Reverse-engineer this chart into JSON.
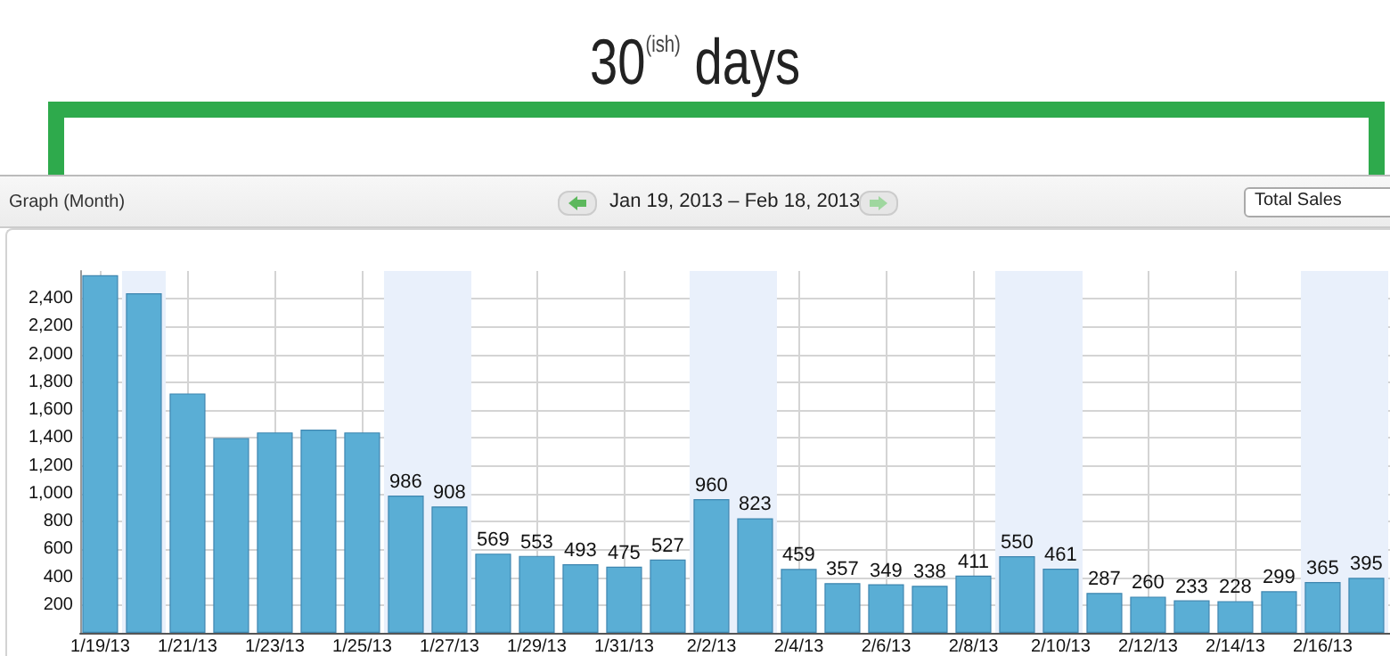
{
  "chart_data": {
    "type": "bar",
    "title": "30$^{(ish)}$ days",
    "annotations": [
      "Graph (Month)",
      "Jan 19, 2013 – Feb 18, 2013",
      "Total Sales"
    ],
    "x": [
      "2013-01-19",
      "2013-01-20",
      "2013-01-21",
      "2013-01-22",
      "2013-01-23",
      "2013-01-24",
      "2013-01-25",
      "2013-01-26",
      "2013-01-27",
      "2013-01-28",
      "2013-01-29",
      "2013-01-30",
      "2013-01-31",
      "2013-02-01",
      "2013-02-02",
      "2013-02-03",
      "2013-02-04",
      "2013-02-05",
      "2013-02-06",
      "2013-02-07",
      "2013-02-08",
      "2013-02-09",
      "2013-02-10",
      "2013-02-11",
      "2013-02-12",
      "2013-02-13",
      "2013-02-14",
      "2013-02-15",
      "2013-02-16",
      "2013-02-17"
    ],
    "values": [
      2570,
      2440,
      1720,
      1400,
      1440,
      1460,
      1440,
      986,
      908,
      569,
      553,
      493,
      475,
      527,
      960,
      823,
      459,
      357,
      349,
      338,
      411,
      550,
      461,
      287,
      260,
      233,
      228,
      299,
      365,
      395
    ],
    "value_labels": [
      null,
      null,
      null,
      null,
      null,
      null,
      null,
      "986",
      "908",
      "569",
      "553",
      "493",
      "475",
      "527",
      "960",
      "823",
      "459",
      "357",
      "349",
      "338",
      "411",
      "550",
      "461",
      "287",
      "260",
      "233",
      "228",
      "299",
      "365",
      "395"
    ],
    "color": "#5aaed5",
    "xlim": [
      "2013-01-18T13:00",
      "2013-02-17T13:00"
    ],
    "xticks": [
      {
        "value": "2013-01-19",
        "label": "1/19/13"
      },
      {
        "value": "2013-01-21",
        "label": "1/21/13"
      },
      {
        "value": "2013-01-23",
        "label": "1/23/13"
      },
      {
        "value": "2013-01-25",
        "label": "1/25/13"
      },
      {
        "value": "2013-01-27",
        "label": "1/27/13"
      },
      {
        "value": "2013-01-29",
        "label": "1/29/13"
      },
      {
        "value": "2013-01-31",
        "label": "1/31/13"
      },
      {
        "value": "2013-02-02",
        "label": "2/2/13"
      },
      {
        "value": "2013-02-04",
        "label": "2/4/13"
      },
      {
        "value": "2013-02-06",
        "label": "2/6/13"
      },
      {
        "value": "2013-02-08",
        "label": "2/8/13"
      },
      {
        "value": "2013-02-10",
        "label": "2/10/13"
      },
      {
        "value": "2013-02-12",
        "label": "2/12/13"
      },
      {
        "value": "2013-02-14",
        "label": "2/14/13"
      },
      {
        "value": "2013-02-16",
        "label": "2/16/13"
      }
    ],
    "ylim": [
      0,
      2600
    ],
    "yticks": [
      200,
      400,
      600,
      800,
      {
        "value": 1000,
        "label": "1,000"
      },
      {
        "value": 1200,
        "label": "1,200"
      },
      {
        "value": 1400,
        "label": "1,400"
      },
      {
        "value": 1600,
        "label": "1,600"
      },
      {
        "value": 1800,
        "label": "1,800"
      },
      {
        "value": 2000,
        "label": "2,000"
      },
      {
        "value": 2200,
        "label": "2,200"
      },
      {
        "value": 2400,
        "label": "2,400"
      }
    ],
    "grid": true,
    "bands": [
      {
        "axis": "x",
        "from": "2013-01-19T12:00",
        "to": "2013-01-20T12:00",
        "color": "#e9f0fb"
      },
      {
        "axis": "x",
        "from": "2013-01-25T12:00",
        "to": "2013-01-27T12:00",
        "color": "#e9f0fb"
      },
      {
        "axis": "x",
        "from": "2013-02-01T12:00",
        "to": "2013-02-03T12:00",
        "color": "#e9f0fb"
      },
      {
        "axis": "x",
        "from": "2013-02-08T12:00",
        "to": "2013-02-10T12:00",
        "color": "#e9f0fb"
      },
      {
        "axis": "x",
        "from": "2013-02-15T12:00",
        "to": "2013-02-17T12:00",
        "color": "#e9f0fb"
      }
    ]
  }
}
